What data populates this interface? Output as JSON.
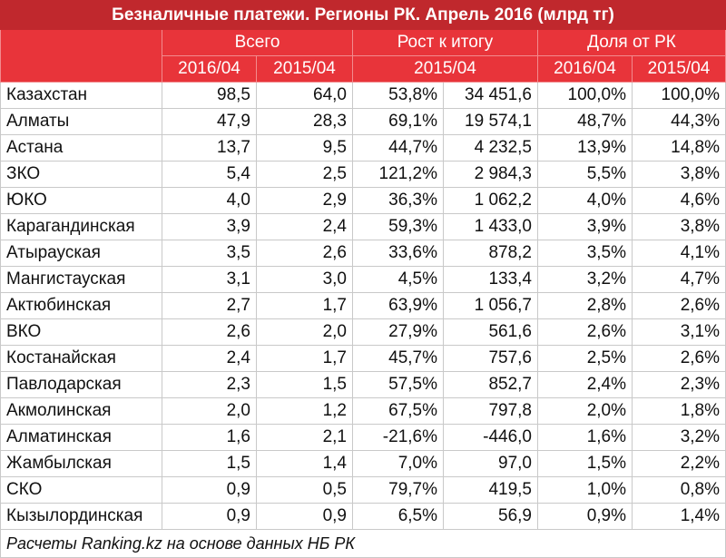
{
  "title": "Безналичные платежи. Регионы РК. Апрель 2016 (млрд тг)",
  "headers": {
    "total": "Всего",
    "growth": "Рост к итогу",
    "share": "Доля от РК",
    "p2016": "2016/04",
    "p2015": "2015/04",
    "growth_sub": "2015/04",
    "share_2016": "2016/04",
    "share_2015": "2015/04"
  },
  "rows": [
    {
      "region": "Казахстан",
      "t2016": "98,5",
      "t2015": "64,0",
      "gpct": "53,8%",
      "gval": "34 451,6",
      "s2016": "100,0%",
      "s2015": "100,0%"
    },
    {
      "region": "Алматы",
      "t2016": "47,9",
      "t2015": "28,3",
      "gpct": "69,1%",
      "gval": "19 574,1",
      "s2016": "48,7%",
      "s2015": "44,3%"
    },
    {
      "region": "Астана",
      "t2016": "13,7",
      "t2015": "9,5",
      "gpct": "44,7%",
      "gval": "4 232,5",
      "s2016": "13,9%",
      "s2015": "14,8%"
    },
    {
      "region": "ЗКО",
      "t2016": "5,4",
      "t2015": "2,5",
      "gpct": "121,2%",
      "gval": "2 984,3",
      "s2016": "5,5%",
      "s2015": "3,8%"
    },
    {
      "region": "ЮКО",
      "t2016": "4,0",
      "t2015": "2,9",
      "gpct": "36,3%",
      "gval": "1 062,2",
      "s2016": "4,0%",
      "s2015": "4,6%"
    },
    {
      "region": "Карагандинская",
      "t2016": "3,9",
      "t2015": "2,4",
      "gpct": "59,3%",
      "gval": "1 433,0",
      "s2016": "3,9%",
      "s2015": "3,8%"
    },
    {
      "region": "Атырауская",
      "t2016": "3,5",
      "t2015": "2,6",
      "gpct": "33,6%",
      "gval": "878,2",
      "s2016": "3,5%",
      "s2015": "4,1%"
    },
    {
      "region": "Мангистауская",
      "t2016": "3,1",
      "t2015": "3,0",
      "gpct": "4,5%",
      "gval": "133,4",
      "s2016": "3,2%",
      "s2015": "4,7%"
    },
    {
      "region": "Актюбинская",
      "t2016": "2,7",
      "t2015": "1,7",
      "gpct": "63,9%",
      "gval": "1 056,7",
      "s2016": "2,8%",
      "s2015": "2,6%"
    },
    {
      "region": "ВКО",
      "t2016": "2,6",
      "t2015": "2,0",
      "gpct": "27,9%",
      "gval": "561,6",
      "s2016": "2,6%",
      "s2015": "3,1%"
    },
    {
      "region": "Костанайская",
      "t2016": "2,4",
      "t2015": "1,7",
      "gpct": "45,7%",
      "gval": "757,6",
      "s2016": "2,5%",
      "s2015": "2,6%"
    },
    {
      "region": "Павлодарская",
      "t2016": "2,3",
      "t2015": "1,5",
      "gpct": "57,5%",
      "gval": "852,7",
      "s2016": "2,4%",
      "s2015": "2,3%"
    },
    {
      "region": "Акмолинская",
      "t2016": "2,0",
      "t2015": "1,2",
      "gpct": "67,5%",
      "gval": "797,8",
      "s2016": "2,0%",
      "s2015": "1,8%"
    },
    {
      "region": "Алматинская",
      "t2016": "1,6",
      "t2015": "2,1",
      "gpct": "-21,6%",
      "gval": "-446,0",
      "s2016": "1,6%",
      "s2015": "3,2%"
    },
    {
      "region": "Жамбылская",
      "t2016": "1,5",
      "t2015": "1,4",
      "gpct": "7,0%",
      "gval": "97,0",
      "s2016": "1,5%",
      "s2015": "2,2%"
    },
    {
      "region": "СКО",
      "t2016": "0,9",
      "t2015": "0,5",
      "gpct": "79,7%",
      "gval": "419,5",
      "s2016": "1,0%",
      "s2015": "0,8%"
    },
    {
      "region": "Кызылординская",
      "t2016": "0,9",
      "t2015": "0,9",
      "gpct": "6,5%",
      "gval": "56,9",
      "s2016": "0,9%",
      "s2015": "1,4%"
    }
  ],
  "source": "Расчеты Ranking.kz на основе данных НБ РК",
  "colors": {
    "title_bg": "#c0282d",
    "header_bg": "#e8343a"
  }
}
